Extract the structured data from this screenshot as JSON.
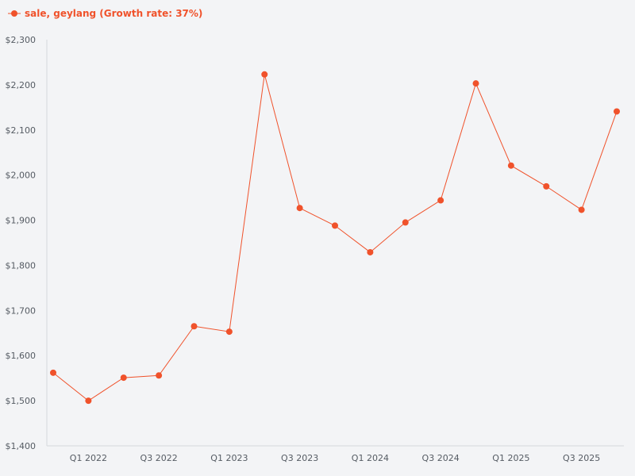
{
  "chart_data": {
    "type": "line",
    "title": "",
    "xlabel": "",
    "ylabel": "",
    "ylim": [
      1400,
      2300
    ],
    "y_ticks": [
      "$1,400",
      "$1,500",
      "$1,600",
      "$1,700",
      "$1,800",
      "$1,900",
      "$2,000",
      "$2,100",
      "$2,200",
      "$2,300"
    ],
    "y_tick_values": [
      1400,
      1500,
      1600,
      1700,
      1800,
      1900,
      2000,
      2100,
      2200,
      2300
    ],
    "categories": [
      "Q4 2021",
      "Q1 2022",
      "Q2 2022",
      "Q3 2022",
      "Q4 2022",
      "Q1 2023",
      "Q2 2023",
      "Q3 2023",
      "Q4 2023",
      "Q1 2024",
      "Q2 2024",
      "Q3 2024",
      "Q4 2024",
      "Q1 2025",
      "Q2 2025",
      "Q3 2025",
      "Q4 2025"
    ],
    "x_tick_labels": [
      {
        "index": 1,
        "label": "Q1 2022"
      },
      {
        "index": 3,
        "label": "Q3 2022"
      },
      {
        "index": 5,
        "label": "Q1 2023"
      },
      {
        "index": 7,
        "label": "Q3 2023"
      },
      {
        "index": 9,
        "label": "Q1 2024"
      },
      {
        "index": 11,
        "label": "Q3 2024"
      },
      {
        "index": 13,
        "label": "Q1 2025"
      },
      {
        "index": 15,
        "label": "Q3 2025"
      }
    ],
    "series": [
      {
        "name": "sale, geylang (Growth rate: 37%)",
        "color": "#f0522b",
        "values": [
          1562,
          1500,
          1551,
          1556,
          1665,
          1653,
          2223,
          1927,
          1888,
          1829,
          1895,
          1944,
          2203,
          2021,
          1975,
          1923,
          2141
        ]
      }
    ],
    "legend": {
      "label": "sale, geylang (Growth rate: 37%)",
      "position": "top-left"
    },
    "grid": false
  }
}
